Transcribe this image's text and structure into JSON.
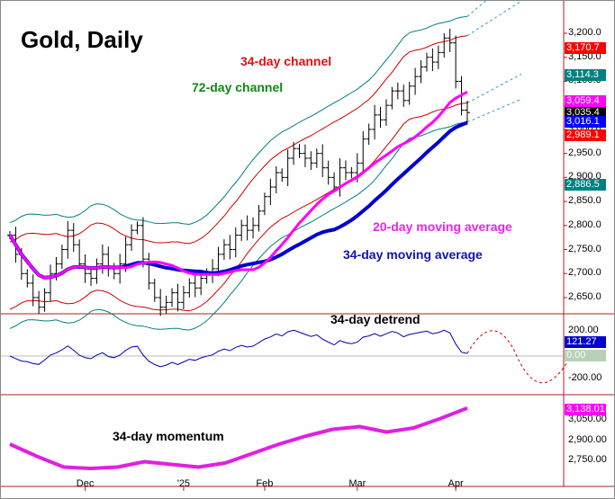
{
  "chart_data": {
    "type": "ohlc",
    "title": "Gold, Daily",
    "annotations": {
      "ch34": "34-day channel",
      "ch72": "72-day channel",
      "ma20": "20-day moving average",
      "ma34": "34-day moving average",
      "detrend": "34-day detrend",
      "momentum": "34-day  momentum"
    },
    "colors": {
      "ma20": "#ff00ff",
      "ma34": "#0000cc",
      "ch34": "#cc0000",
      "ch72": "#008080",
      "detrend": "#0000aa",
      "momentum": "#e020e0"
    },
    "closes": [
      2780,
      2740,
      2700,
      2680,
      2650,
      2630,
      2660,
      2700,
      2720,
      2750,
      2790,
      2760,
      2720,
      2700,
      2690,
      2720,
      2740,
      2710,
      2700,
      2720,
      2760,
      2790,
      2800,
      2730,
      2680,
      2650,
      2630,
      2640,
      2660,
      2640,
      2660,
      2680,
      2670,
      2690,
      2700,
      2710,
      2740,
      2760,
      2750,
      2780,
      2800,
      2790,
      2800,
      2830,
      2860,
      2880,
      2910,
      2900,
      2940,
      2960,
      2950,
      2940,
      2930,
      2950,
      2920,
      2900,
      2880,
      2920,
      2910,
      2910,
      2930,
      2980,
      3000,
      3030,
      3020,
      3050,
      3080,
      3080,
      3060,
      3090,
      3110,
      3130,
      3150,
      3140,
      3160,
      3190,
      3180,
      3100,
      3040,
      3035
    ],
    "momentum": [
      2870,
      2780,
      2700,
      2690,
      2700,
      2740,
      2720,
      2700,
      2730,
      2800,
      2870,
      2930,
      2980,
      3000,
      2960,
      2990,
      3060,
      3138
    ],
    "price_axis": {
      "ylim": [
        2620,
        3240
      ],
      "ticks": [
        "3,200.0",
        "3,150.0",
        "3,100.0",
        "3,050.0",
        "3,000.0",
        "2,950.0",
        "2,900.0",
        "2,850.0",
        "2,800.0",
        "2,750.0",
        "2,700.0",
        "2,650.0"
      ],
      "tick_values": [
        3200,
        3150,
        3100,
        3050,
        3000,
        2950,
        2900,
        2850,
        2800,
        2750,
        2700,
        2650
      ]
    },
    "detrend_axis": {
      "ticks": [
        "200.00",
        "-200.00"
      ]
    },
    "momentum_axis": {
      "ticks": [
        "3,050.00",
        "2,900.00",
        "2,750.00"
      ]
    },
    "x_labels": [
      {
        "label": "Dec",
        "index": 13
      },
      {
        "label": "'25",
        "index": 30
      },
      {
        "label": "Feb",
        "index": 44
      },
      {
        "label": "Mar",
        "index": 60
      },
      {
        "label": "Apr",
        "index": 77
      }
    ],
    "value_tags": [
      {
        "label": "3,170.7",
        "color": "#ff0000",
        "value": 3170.7
      },
      {
        "label": "3,114.3",
        "color": "#008080",
        "value": 3114.3
      },
      {
        "label": "3,059.4",
        "color": "#ff00ff",
        "value": 3059.4
      },
      {
        "label": "3,035.4",
        "color": "#000000",
        "value": 3035.4
      },
      {
        "label": "3,016.1",
        "color": "#0000ff",
        "value": 3016.1
      },
      {
        "label": "2,989.1",
        "color": "#ff0000",
        "value": 2989.1
      },
      {
        "label": "2,886.5",
        "color": "#008080",
        "value": 2886.5
      }
    ],
    "detrend_tags": [
      {
        "label": "121.27",
        "color": "#0000cc"
      },
      {
        "label": "0.00",
        "color": "#b8d0b8"
      }
    ],
    "momentum_tag": {
      "label": "3,138.01",
      "color": "#ff00ff"
    }
  }
}
